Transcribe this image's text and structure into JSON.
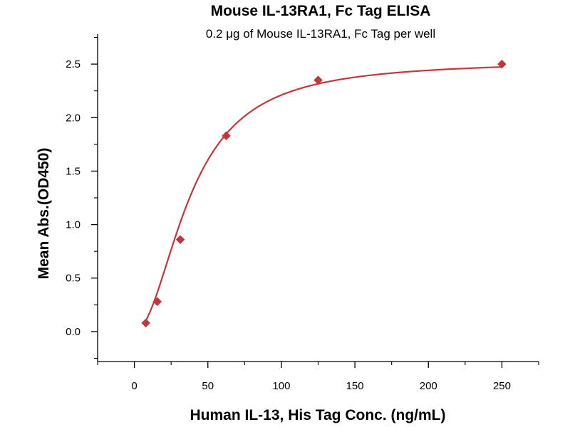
{
  "chart_data": {
    "type": "scatter",
    "title": "Mouse IL-13RA1, Fc Tag ELISA",
    "subtitle": "0.2 μg of Mouse IL-13RA1, Fc Tag per well",
    "xlabel": "Human IL-13, His Tag Conc. (ng/mL)",
    "ylabel": "Mean Abs.(OD450)",
    "xlim": [
      -25,
      275
    ],
    "ylim": [
      -0.28,
      2.78
    ],
    "x_ticks": [
      0,
      50,
      100,
      150,
      200,
      250
    ],
    "x_tick_labels": [
      "0",
      "50",
      "100",
      "150",
      "200",
      "250"
    ],
    "y_ticks": [
      0.0,
      0.5,
      1.0,
      1.5,
      2.0,
      2.5
    ],
    "y_tick_labels": [
      "0.0",
      "0.5",
      "1.0",
      "1.5",
      "2.0",
      "2.5"
    ],
    "grid": false,
    "legend": "none",
    "series": [
      {
        "x": [
          7.8,
          15.6,
          31.25,
          62.5,
          125,
          250
        ],
        "y": [
          0.08,
          0.28,
          0.86,
          1.83,
          2.35,
          2.5
        ],
        "marker": "diamond",
        "fit": "four-parameter logistic curve"
      }
    ],
    "colors": {
      "series": "#c0383a",
      "axis": "#000000"
    }
  }
}
